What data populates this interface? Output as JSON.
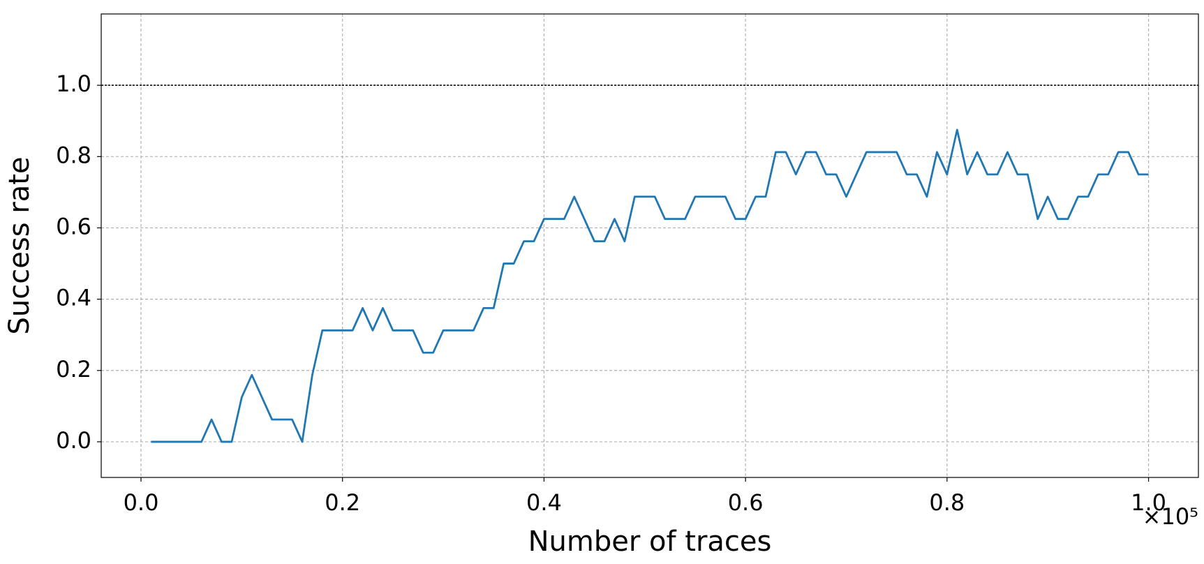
{
  "chart_data": {
    "type": "line",
    "xlabel": "Number of traces",
    "ylabel": "Success rate",
    "x_offset_label": "×10⁵",
    "x": [
      1000,
      2000,
      3000,
      4000,
      5000,
      6000,
      7000,
      8000,
      9000,
      10000,
      11000,
      12000,
      13000,
      14000,
      15000,
      16000,
      17000,
      18000,
      19000,
      20000,
      21000,
      22000,
      23000,
      24000,
      25000,
      26000,
      27000,
      28000,
      29000,
      30000,
      31000,
      32000,
      33000,
      34000,
      35000,
      36000,
      37000,
      38000,
      39000,
      40000,
      41000,
      42000,
      43000,
      44000,
      45000,
      46000,
      47000,
      48000,
      49000,
      50000,
      51000,
      52000,
      53000,
      54000,
      55000,
      56000,
      57000,
      58000,
      59000,
      60000,
      61000,
      62000,
      63000,
      64000,
      65000,
      66000,
      67000,
      68000,
      69000,
      70000,
      71000,
      72000,
      73000,
      74000,
      75000,
      76000,
      77000,
      78000,
      79000,
      80000,
      81000,
      82000,
      83000,
      84000,
      85000,
      86000,
      87000,
      88000,
      89000,
      90000,
      91000,
      92000,
      93000,
      94000,
      95000,
      96000,
      97000,
      98000,
      99000,
      100000
    ],
    "series": [
      {
        "color": "#1f77b4",
        "values": [
          0,
          0,
          0,
          0,
          0,
          0,
          0.0625,
          0,
          0,
          0.125,
          0.1875,
          0.125,
          0.0625,
          0.0625,
          0.0625,
          0,
          0.1875,
          0.3125,
          0.3125,
          0.3125,
          0.3125,
          0.375,
          0.3125,
          0.375,
          0.3125,
          0.3125,
          0.3125,
          0.25,
          0.25,
          0.3125,
          0.3125,
          0.3125,
          0.3125,
          0.375,
          0.375,
          0.5,
          0.5,
          0.5625,
          0.5625,
          0.625,
          0.625,
          0.625,
          0.6875,
          0.625,
          0.5625,
          0.5625,
          0.625,
          0.5625,
          0.6875,
          0.6875,
          0.6875,
          0.625,
          0.625,
          0.625,
          0.6875,
          0.6875,
          0.6875,
          0.6875,
          0.625,
          0.625,
          0.6875,
          0.6875,
          0.8125,
          0.8125,
          0.75,
          0.8125,
          0.8125,
          0.75,
          0.75,
          0.6875,
          0.75,
          0.8125,
          0.8125,
          0.8125,
          0.8125,
          0.75,
          0.75,
          0.6875,
          0.8125,
          0.75,
          0.875,
          0.75,
          0.8125,
          0.75,
          0.75,
          0.8125,
          0.75,
          0.75,
          0.625,
          0.6875,
          0.625,
          0.625,
          0.6875,
          0.6875,
          0.75,
          0.75,
          0.8125,
          0.8125,
          0.75,
          0.75
        ]
      }
    ],
    "reference_line": {
      "value": 1,
      "color": "#000000"
    },
    "xlim": [
      -3950,
      104950
    ],
    "xticks": [
      {
        "value": 0,
        "label": "0.0"
      },
      {
        "value": 20000,
        "label": "0.2"
      },
      {
        "value": 40000,
        "label": "0.4"
      },
      {
        "value": 60000,
        "label": "0.6"
      },
      {
        "value": 80000,
        "label": "0.8"
      },
      {
        "value": 100000,
        "label": "1.0"
      }
    ],
    "ylim": [
      -0.1,
      1.2
    ],
    "yticks": [
      {
        "value": 0,
        "label": "0.0"
      },
      0.2,
      0.4,
      0.6,
      0.8,
      {
        "value": 1,
        "label": "1.0"
      }
    ],
    "grid": true
  }
}
